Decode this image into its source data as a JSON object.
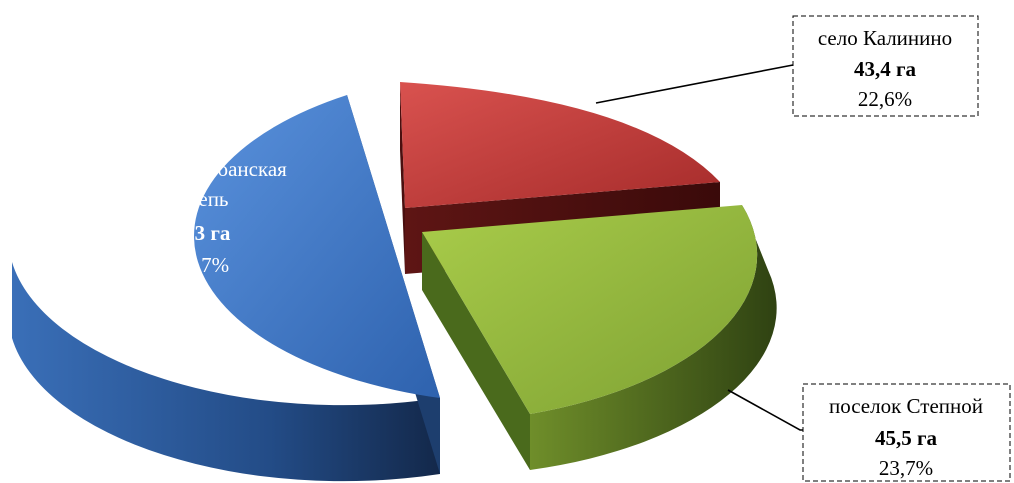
{
  "chart_data": {
    "type": "pie",
    "title": "",
    "unit": "га",
    "style": "3d-exploded",
    "slices": [
      {
        "label": "поселок Кубанская Степь",
        "value": 103,
        "value_text": "103 га",
        "percent_text": "53,7%",
        "color": "#3a72c0",
        "label_placement": "inside"
      },
      {
        "label": "село Калинино",
        "value": 43.4,
        "value_text": "43,4 га",
        "percent_text": "22,6%",
        "color": "#c23a39",
        "label_placement": "outside-top-right"
      },
      {
        "label": "поселок Степной",
        "value": 45.5,
        "value_text": "45,5 га",
        "percent_text": "23,7%",
        "color": "#8fb43a",
        "label_placement": "outside-bottom-right"
      }
    ]
  }
}
